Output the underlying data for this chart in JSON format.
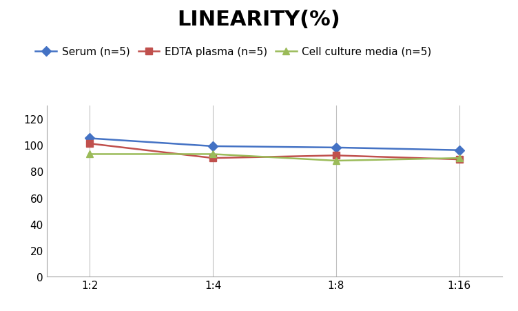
{
  "title": "LINEARITY(%)",
  "x_labels": [
    "1:2",
    "1:4",
    "1:8",
    "1:16"
  ],
  "x_positions": [
    0,
    1,
    2,
    3
  ],
  "series": [
    {
      "label": "Serum (n=5)",
      "values": [
        105,
        99,
        98,
        96
      ],
      "color": "#4472C4",
      "marker": "D",
      "marker_color": "#4472C4",
      "linewidth": 1.8
    },
    {
      "label": "EDTA plasma (n=5)",
      "values": [
        101,
        90,
        92,
        89
      ],
      "color": "#C0504D",
      "marker": "s",
      "marker_color": "#C0504D",
      "linewidth": 1.8
    },
    {
      "label": "Cell culture media (n=5)",
      "values": [
        93,
        93,
        88,
        90
      ],
      "color": "#9BBB59",
      "marker": "^",
      "marker_color": "#9BBB59",
      "linewidth": 1.8
    }
  ],
  "ylim": [
    0,
    130
  ],
  "yticks": [
    0,
    20,
    40,
    60,
    80,
    100,
    120
  ],
  "grid_color": "#C0C0C0",
  "background_color": "#FFFFFF",
  "title_fontsize": 22,
  "legend_fontsize": 11,
  "tick_fontsize": 11
}
